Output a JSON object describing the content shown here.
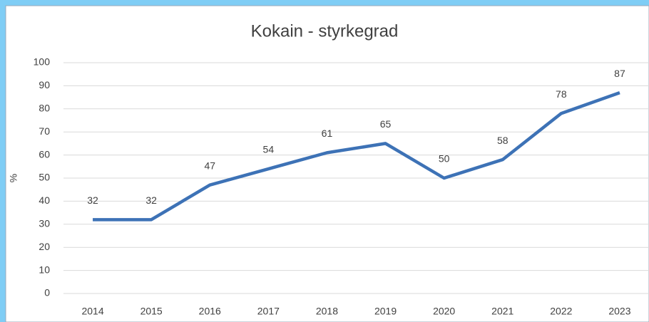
{
  "chart_data": {
    "type": "line",
    "title": "Kokain - styrkegrad",
    "y_label": "%",
    "categories": [
      "2014",
      "2015",
      "2016",
      "2017",
      "2018",
      "2019",
      "2020",
      "2021",
      "2022",
      "2023"
    ],
    "values": [
      32,
      32,
      47,
      54,
      61,
      65,
      50,
      58,
      78,
      87
    ],
    "color": "#3d72b6",
    "ylim": [
      0,
      100
    ],
    "yticks": [
      0,
      10,
      20,
      30,
      40,
      50,
      60,
      70,
      80,
      90,
      100
    ],
    "grid": true
  }
}
